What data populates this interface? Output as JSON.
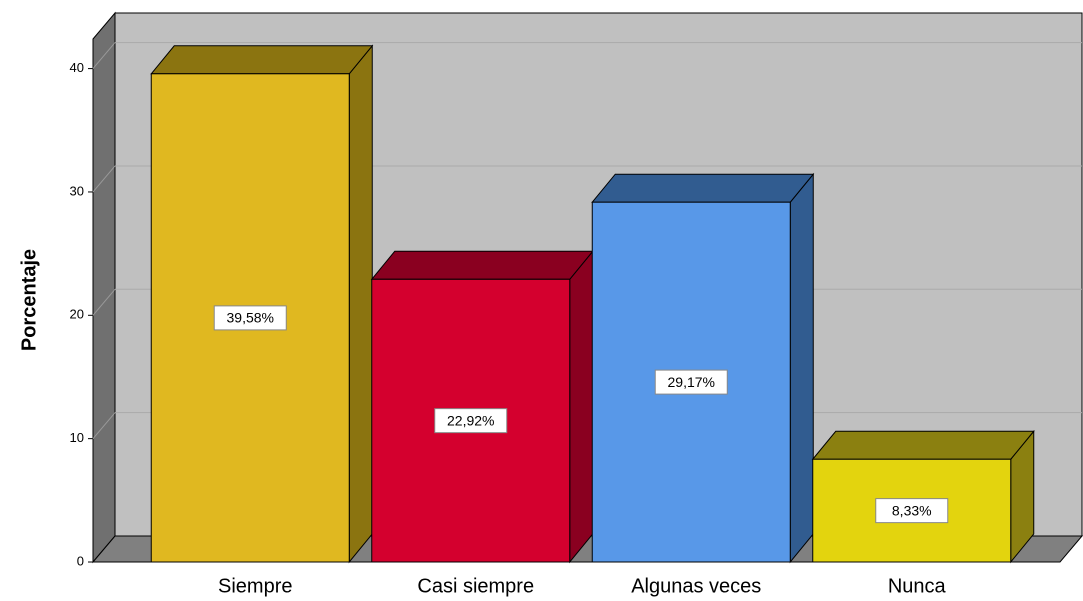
{
  "chart_data": {
    "type": "bar3d",
    "y_label": "Porcentaje",
    "categories": [
      "Siempre",
      "Casi siempre",
      "Algunas veces",
      "Nunca"
    ],
    "values": [
      39.58,
      22.92,
      29.17,
      8.33
    ],
    "value_labels": [
      "39,58%",
      "22,92%",
      "29,17%",
      "8,33%"
    ],
    "colors": [
      "#e0b820",
      "#d4002e",
      "#5898e8",
      "#e3d40e"
    ],
    "side_colors": [
      "#8b7410",
      "#8a0020",
      "#315c90",
      "#8b8010"
    ],
    "ylim": [
      0,
      42.4
    ],
    "yticks": [
      0,
      10,
      20,
      30,
      40
    ],
    "grid": true
  }
}
